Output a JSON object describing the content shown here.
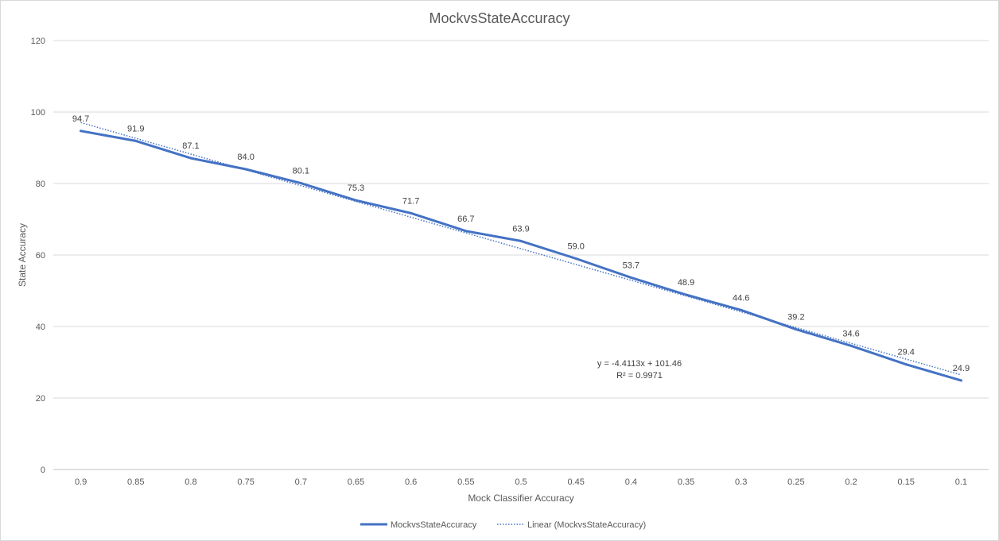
{
  "chart_data": {
    "type": "line",
    "title": "MockvsStateAccuracy",
    "xlabel": "Mock Classifier Accuracy",
    "ylabel": "State Accuracy",
    "categories": [
      "0.9",
      "0.85",
      "0.8",
      "0.75",
      "0.7",
      "0.65",
      "0.6",
      "0.55",
      "0.5",
      "0.45",
      "0.4",
      "0.35",
      "0.3",
      "0.25",
      "0.2",
      "0.15",
      "0.1"
    ],
    "series": [
      {
        "name": "MockvsStateAccuracy",
        "color": "#4472c4",
        "values": [
          94.7,
          91.9,
          87.1,
          84.0,
          80.1,
          75.3,
          71.7,
          66.7,
          63.9,
          59.0,
          53.7,
          48.9,
          44.6,
          39.2,
          34.6,
          29.4,
          24.9
        ],
        "data_labels": [
          "94.7",
          "91.9",
          "87.1",
          "84.0",
          "80.1",
          "75.3",
          "71.7",
          "66.7",
          "63.9",
          "59.0",
          "53.7",
          "48.9",
          "44.6",
          "39.2",
          "34.6",
          "29.4",
          "24.9"
        ]
      }
    ],
    "trendline": {
      "name": "Linear (MockvsStateAccuracy)",
      "type": "linear",
      "slope": -4.4113,
      "intercept": 101.46,
      "equation": "y = -4.4113x + 101.46",
      "r_squared": "R² = 0.9971",
      "color": "#4472c4"
    },
    "ylim": [
      0,
      120
    ],
    "yticks": [
      "0",
      "20",
      "40",
      "60",
      "80",
      "100",
      "120"
    ],
    "grid": true,
    "legend": "bottom"
  }
}
